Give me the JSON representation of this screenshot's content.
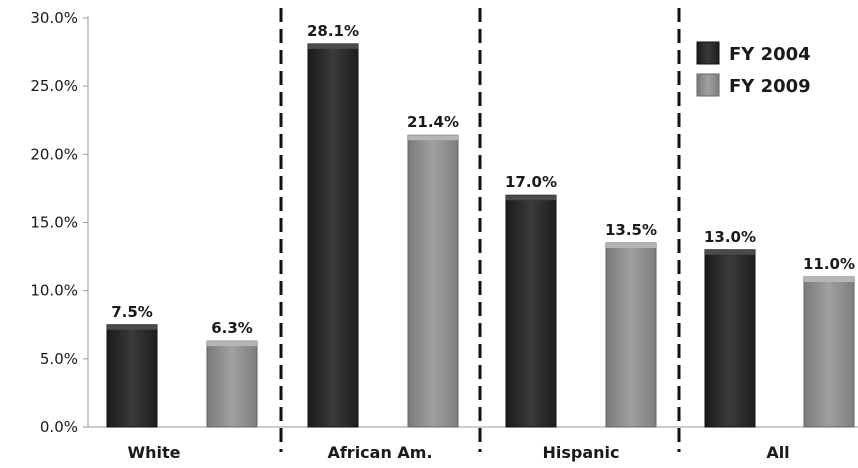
{
  "chart_data": {
    "type": "bar",
    "categories": [
      "White",
      "African Am.",
      "Hispanic",
      "All"
    ],
    "series": [
      {
        "name": "FY 2004",
        "color": "#2a2a2a",
        "values": [
          7.5,
          28.1,
          17.0,
          13.0
        ],
        "labels": [
          "7.5%",
          "28.1%",
          "17.0%",
          "13.0%"
        ]
      },
      {
        "name": "FY 2009",
        "color": "#8c8c8c",
        "values": [
          6.3,
          21.4,
          13.5,
          11.0
        ],
        "labels": [
          "6.3%",
          "21.4%",
          "13.5%",
          "11.0%"
        ]
      }
    ],
    "ylim": [
      0,
      30
    ],
    "yticks": [
      0,
      5,
      10,
      15,
      20,
      25,
      30
    ],
    "ytick_labels": [
      "0.0%",
      "5.0%",
      "10.0%",
      "15.0%",
      "20.0%",
      "25.0%",
      "30.0%"
    ],
    "group_separators": "dashed",
    "legend_position": "top-right",
    "grid": false
  }
}
